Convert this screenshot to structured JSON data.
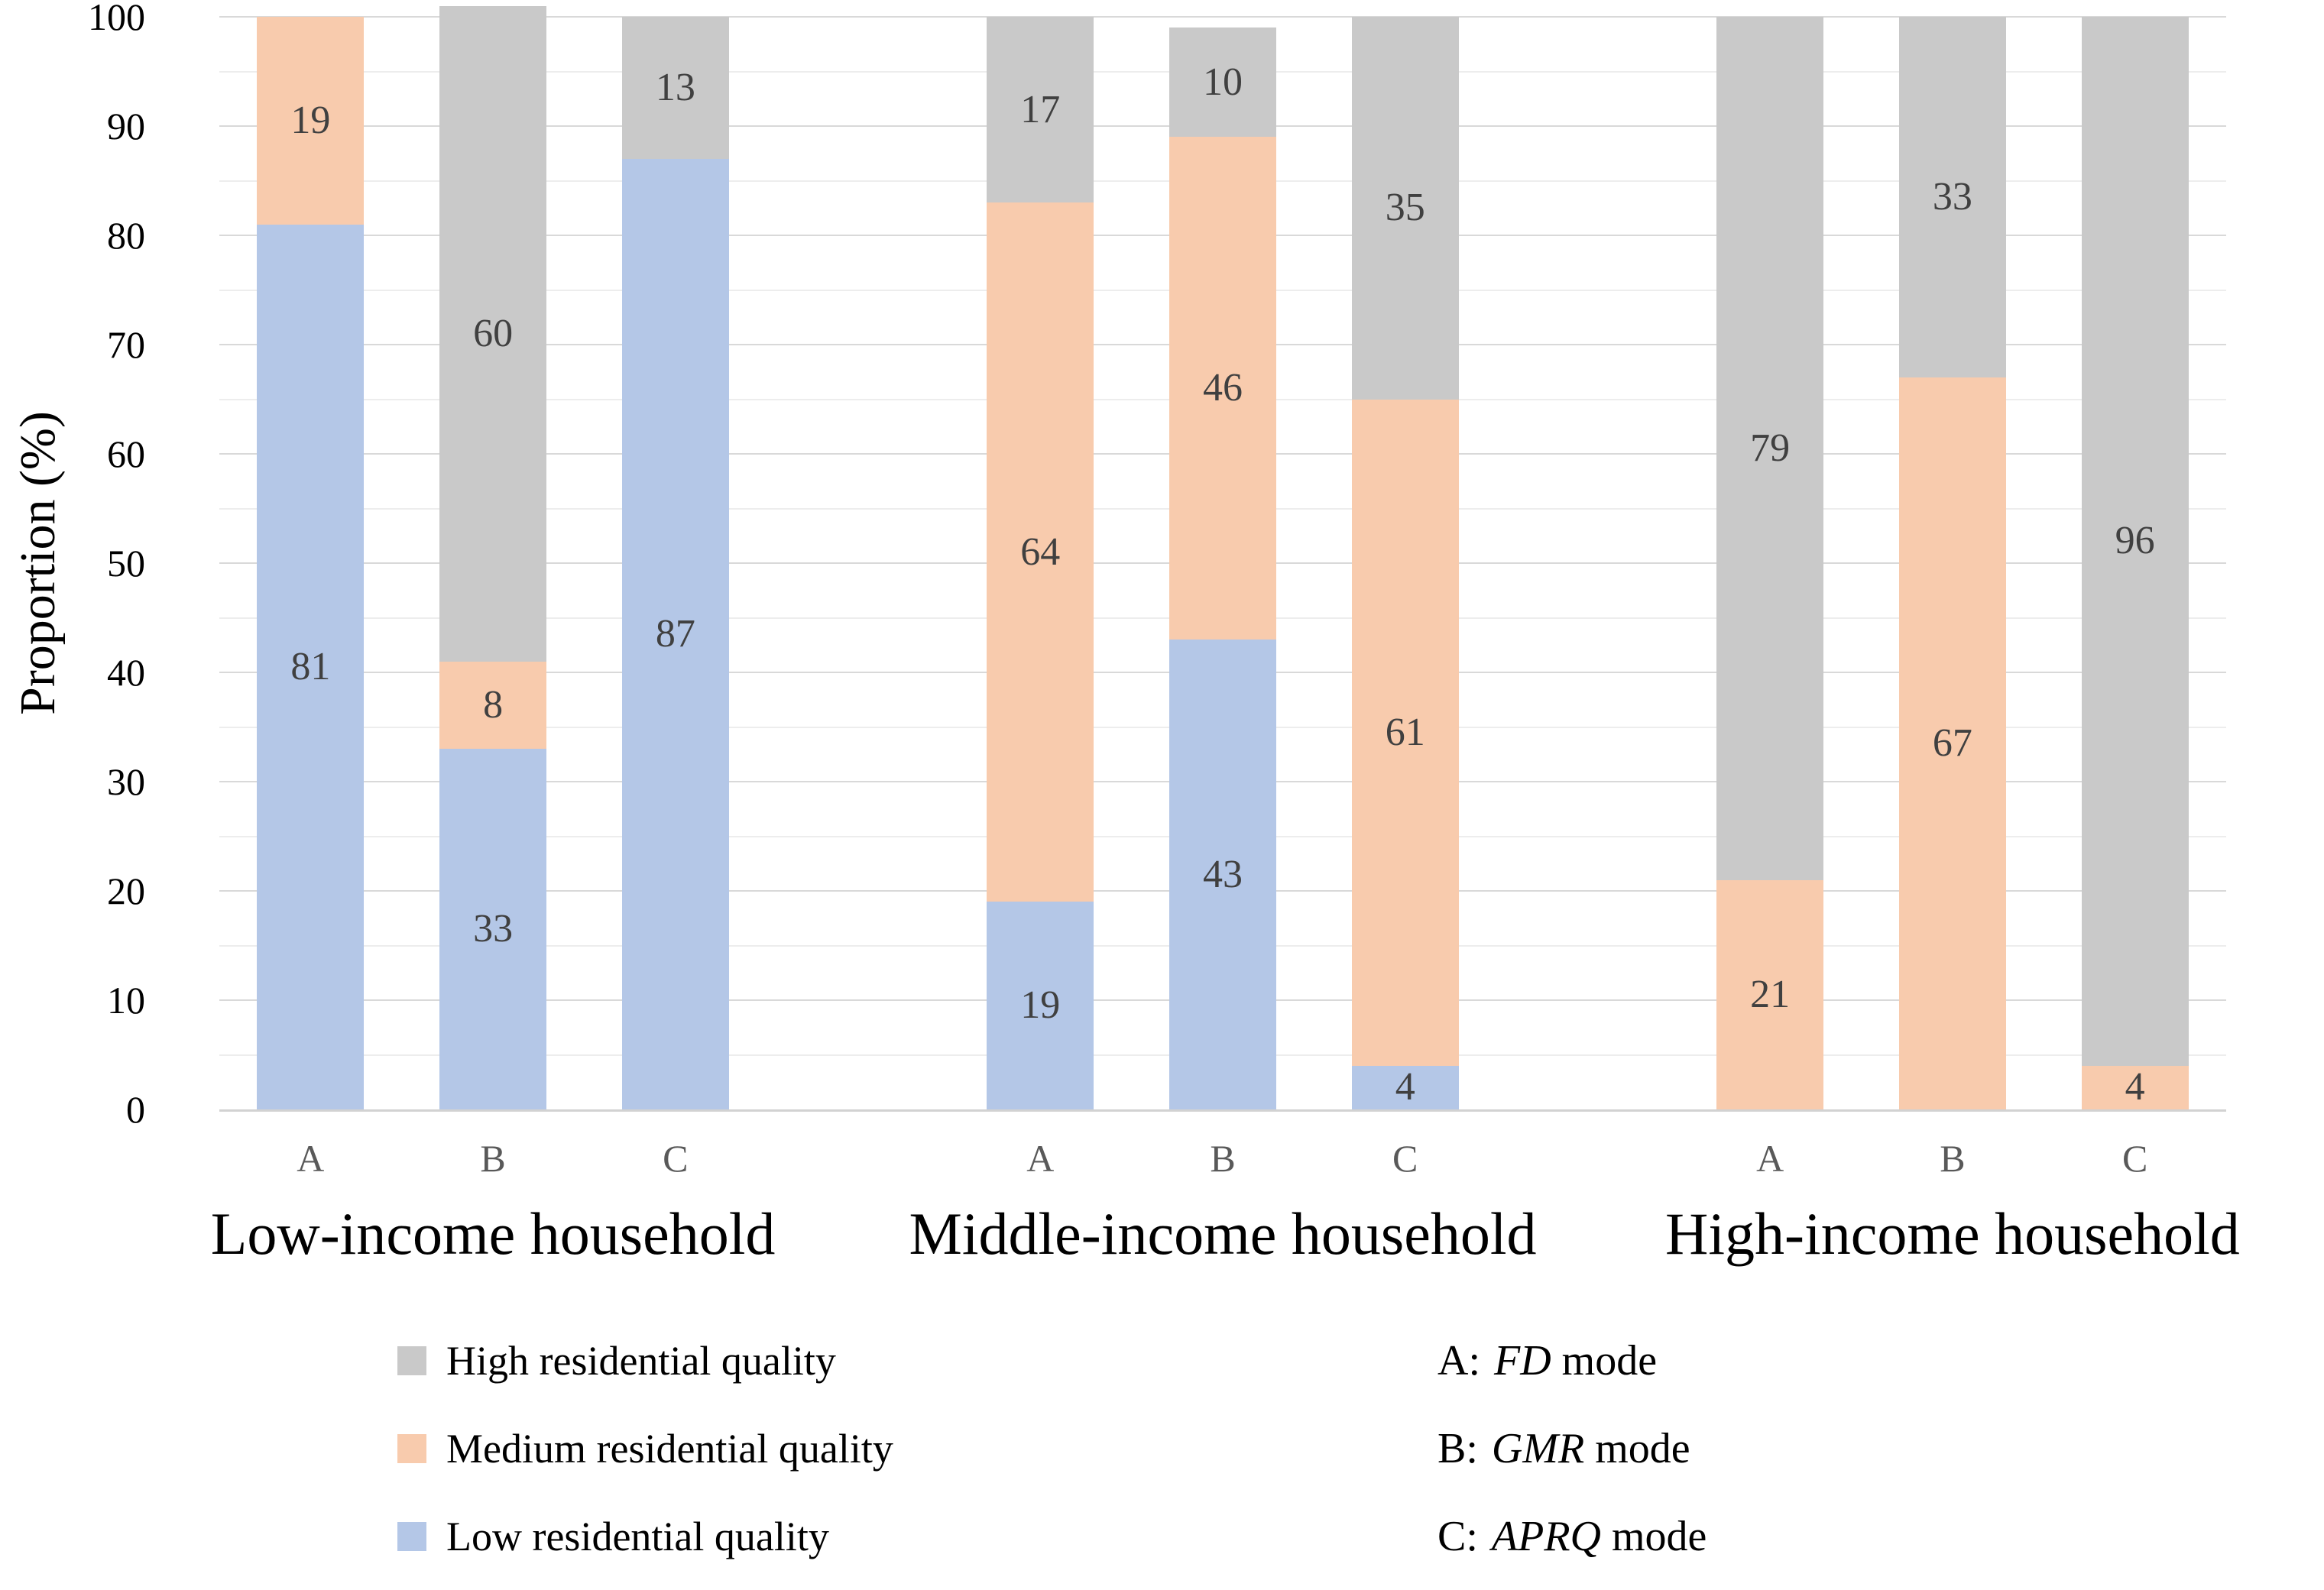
{
  "chart_data": {
    "type": "bar",
    "stacked": true,
    "title": "",
    "ylabel": "Proportion (%)",
    "xlabel": "",
    "ylim": [
      0,
      100
    ],
    "yticks": [
      0,
      10,
      20,
      30,
      40,
      50,
      60,
      70,
      80,
      90,
      100
    ],
    "minor_grid_step": 5,
    "grid": true,
    "legend_position": "bottom",
    "series": [
      {
        "key": "high",
        "name": "High residential quality",
        "color": "#C9C9C9"
      },
      {
        "key": "medium",
        "name": "Medium residential quality",
        "color": "#F8CBAD"
      },
      {
        "key": "low",
        "name": "Low residential quality",
        "color": "#B4C7E7"
      }
    ],
    "groups": [
      {
        "label": "Low-income household",
        "bars": [
          {
            "label": "A",
            "segments": [
              {
                "series": "low",
                "value": 81
              },
              {
                "series": "medium",
                "value": 19
              }
            ]
          },
          {
            "label": "B",
            "segments": [
              {
                "series": "low",
                "value": 33
              },
              {
                "series": "medium",
                "value": 8
              },
              {
                "series": "high",
                "value": 60
              }
            ]
          },
          {
            "label": "C",
            "segments": [
              {
                "series": "low",
                "value": 87
              },
              {
                "series": "high",
                "value": 13
              }
            ]
          }
        ]
      },
      {
        "label": "Middle-income household",
        "bars": [
          {
            "label": "A",
            "segments": [
              {
                "series": "low",
                "value": 19
              },
              {
                "series": "medium",
                "value": 64
              },
              {
                "series": "high",
                "value": 17
              }
            ]
          },
          {
            "label": "B",
            "segments": [
              {
                "series": "low",
                "value": 43
              },
              {
                "series": "medium",
                "value": 46
              },
              {
                "series": "high",
                "value": 10
              }
            ]
          },
          {
            "label": "C",
            "segments": [
              {
                "series": "low",
                "value": 4
              },
              {
                "series": "medium",
                "value": 61
              },
              {
                "series": "high",
                "value": 35
              }
            ]
          }
        ]
      },
      {
        "label": "High-income household",
        "bars": [
          {
            "label": "A",
            "segments": [
              {
                "series": "medium",
                "value": 21
              },
              {
                "series": "high",
                "value": 79
              }
            ]
          },
          {
            "label": "B",
            "segments": [
              {
                "series": "medium",
                "value": 67
              },
              {
                "series": "high",
                "value": 33
              }
            ]
          },
          {
            "label": "C",
            "segments": [
              {
                "series": "medium",
                "value": 4
              },
              {
                "series": "high",
                "value": 96
              }
            ]
          }
        ]
      }
    ],
    "mode_legend": [
      {
        "prefix": "A:",
        "mode": "FD",
        "suffix": "mode"
      },
      {
        "prefix": "B:",
        "mode": "GMR",
        "suffix": "mode"
      },
      {
        "prefix": "C:",
        "mode": "APRQ",
        "suffix": "mode"
      }
    ]
  },
  "colors": {
    "low_series": "#B4C7E7",
    "medium_series": "#F8CBAD",
    "high_series": "#C9C9C9",
    "data_label": "#404040",
    "category_tick": "#595959",
    "text": "#000000",
    "grid_major": "#D9D9D9",
    "grid_minor": "#EDEDED",
    "axis_line": "#D2D2D2",
    "background": "#FFFFFF"
  }
}
